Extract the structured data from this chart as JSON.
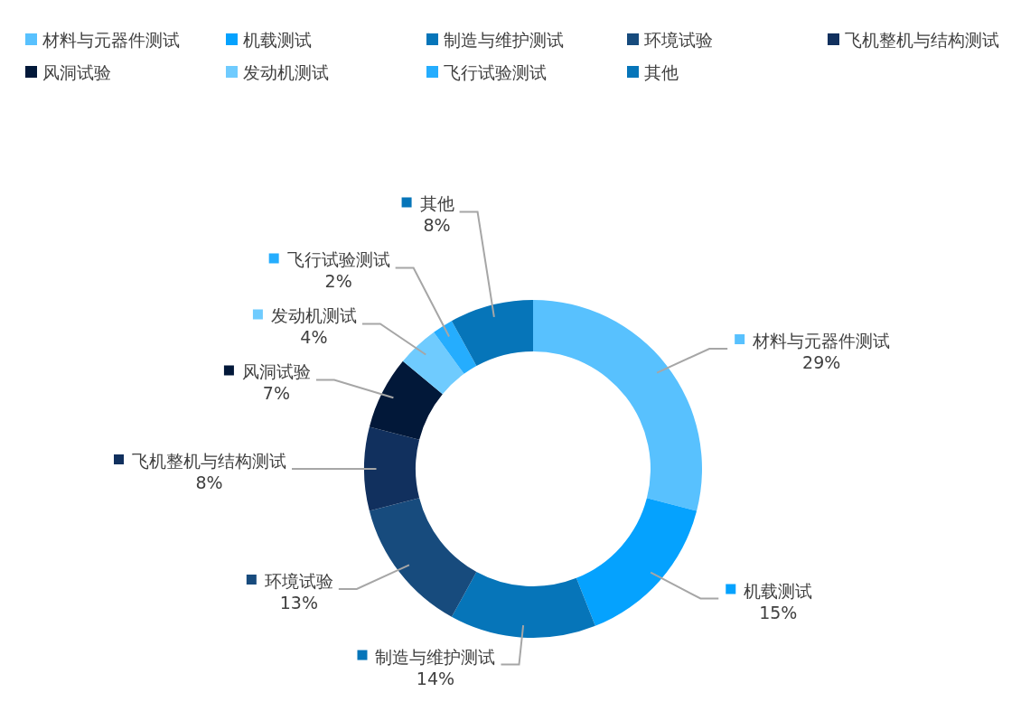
{
  "chart_data": {
    "type": "donut",
    "categories": [
      "材料与元器件测试",
      "机载测试",
      "制造与维护测试",
      "环境试验",
      "飞机整机与结构测试",
      "风洞试验",
      "发动机测试",
      "飞行试验测试",
      "其他"
    ],
    "values": [
      29,
      15,
      14,
      13,
      8,
      7,
      4,
      2,
      8
    ],
    "colors": [
      "#58c1fe",
      "#05a2fe",
      "#0675b9",
      "#174b7d",
      "#11305e",
      "#021839",
      "#6fcbfe",
      "#25adfe",
      "#0675b9"
    ],
    "value_labels": [
      "29%",
      "15%",
      "14%",
      "13%",
      "8%",
      "7%",
      "4%",
      "2%",
      "8%"
    ],
    "legend": "top"
  }
}
